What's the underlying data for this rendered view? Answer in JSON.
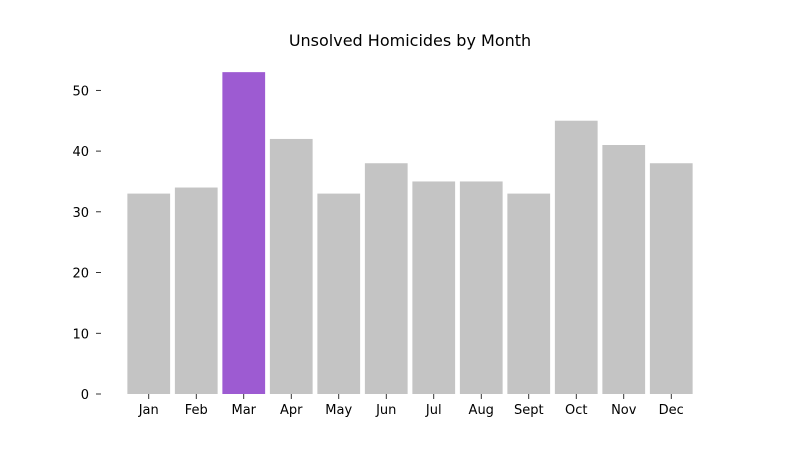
{
  "chart_data": {
    "type": "bar",
    "title": "Unsolved Homicides by Month",
    "xlabel": "",
    "ylabel": "",
    "categories": [
      "Jan",
      "Feb",
      "Mar",
      "Apr",
      "May",
      "Jun",
      "Jul",
      "Aug",
      "Sept",
      "Oct",
      "Nov",
      "Dec"
    ],
    "values": [
      33,
      34,
      53,
      42,
      33,
      38,
      35,
      35,
      33,
      45,
      41,
      38
    ],
    "ylim": [
      0,
      55
    ],
    "yticks": [
      0,
      10,
      20,
      30,
      40,
      50
    ],
    "highlight_index": 2,
    "grid": false,
    "legend": "none"
  },
  "colors": {
    "default_bar": "#c4c4c4",
    "highlight_bar": "#9d5bd2"
  }
}
